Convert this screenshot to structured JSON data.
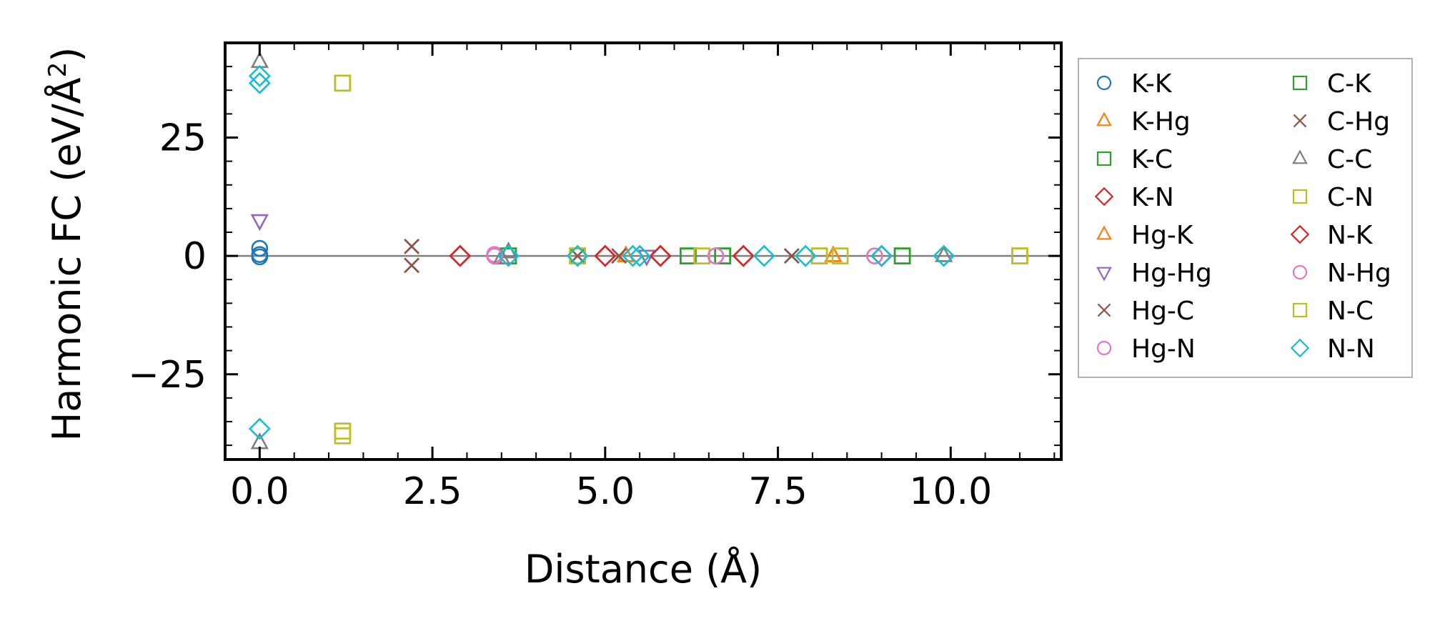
{
  "chart_data": {
    "type": "scatter",
    "xlabel": "Distance (Å)",
    "ylabel_main": "Harmonic FC (eV/Å",
    "ylabel_sup": "2",
    "ylabel_close": ")",
    "xlim": [
      -0.5,
      11.6
    ],
    "ylim": [
      -43,
      45
    ],
    "x_ticks": [
      0.0,
      2.5,
      5.0,
      7.5,
      10.0
    ],
    "x_tick_labels": [
      "0.0",
      "2.5",
      "5.0",
      "7.5",
      "10.0"
    ],
    "y_ticks": [
      -25,
      0,
      25
    ],
    "y_tick_labels": [
      "−25",
      "0",
      "25"
    ],
    "zero_line": true,
    "grid": false,
    "legend": {
      "placement": "outside-right",
      "columns": 2
    },
    "series": [
      {
        "name": "K-K",
        "marker": "circle",
        "color": "#1f77b4",
        "points": [
          [
            0.0,
            1.6
          ],
          [
            0.0,
            0.3
          ],
          [
            0.0,
            -0.2
          ]
        ]
      },
      {
        "name": "K-Hg",
        "marker": "triangle-up",
        "color": "#ff7f0e",
        "points": [
          [
            5.3,
            0.0
          ],
          [
            8.3,
            0.0
          ]
        ]
      },
      {
        "name": "K-C",
        "marker": "square",
        "color": "#2ca02c",
        "points": [
          [
            3.6,
            0.0
          ],
          [
            6.2,
            0.0
          ],
          [
            6.7,
            0.0
          ],
          [
            9.3,
            0.0
          ]
        ]
      },
      {
        "name": "K-N",
        "marker": "diamond",
        "color": "#d62728",
        "points": [
          [
            2.9,
            0.0
          ],
          [
            5.0,
            0.0
          ],
          [
            5.8,
            0.0
          ],
          [
            7.0,
            0.0
          ],
          [
            9.0,
            0.0
          ]
        ]
      },
      {
        "name": "Hg-K",
        "marker": "triangle-up",
        "color": "#ff7f0e",
        "points": [
          [
            5.3,
            0.0
          ],
          [
            8.3,
            0.0
          ]
        ]
      },
      {
        "name": "Hg-Hg",
        "marker": "triangle-down",
        "color": "#9467bd",
        "points": [
          [
            0.0,
            7.5
          ],
          [
            5.6,
            0.0
          ]
        ]
      },
      {
        "name": "Hg-C",
        "marker": "x",
        "color": "#8c564b",
        "points": [
          [
            2.2,
            2.0
          ],
          [
            2.2,
            -2.0
          ],
          [
            4.6,
            0.0
          ],
          [
            5.2,
            0.0
          ],
          [
            7.7,
            0.0
          ]
        ]
      },
      {
        "name": "Hg-N",
        "marker": "circle",
        "color": "#e377c2",
        "points": [
          [
            3.4,
            0.0
          ],
          [
            3.4,
            0.3
          ],
          [
            6.6,
            0.0
          ],
          [
            8.9,
            0.0
          ]
        ]
      },
      {
        "name": "C-K",
        "marker": "square",
        "color": "#2ca02c",
        "points": [
          [
            3.6,
            0.0
          ],
          [
            6.2,
            0.0
          ],
          [
            6.7,
            0.0
          ],
          [
            9.3,
            0.0
          ]
        ]
      },
      {
        "name": "C-Hg",
        "marker": "x",
        "color": "#8c564b",
        "points": [
          [
            2.2,
            2.0
          ],
          [
            2.2,
            -2.0
          ],
          [
            5.2,
            0.0
          ],
          [
            7.7,
            0.0
          ]
        ]
      },
      {
        "name": "C-C",
        "marker": "triangle-up",
        "color": "#7f7f7f",
        "points": [
          [
            0.0,
            41.0
          ],
          [
            0.0,
            -39.5
          ],
          [
            3.5,
            -0.5
          ],
          [
            3.6,
            0.8
          ],
          [
            9.9,
            0.0
          ]
        ]
      },
      {
        "name": "C-N",
        "marker": "square",
        "color": "#bcbd22",
        "points": [
          [
            1.2,
            36.5
          ],
          [
            1.2,
            -37.0
          ],
          [
            1.2,
            -38.0
          ],
          [
            4.6,
            0.0
          ],
          [
            6.4,
            0.0
          ],
          [
            8.1,
            0.0
          ],
          [
            8.4,
            0.0
          ],
          [
            11.0,
            0.0
          ]
        ]
      },
      {
        "name": "N-K",
        "marker": "diamond",
        "color": "#d62728",
        "points": [
          [
            2.9,
            0.0
          ],
          [
            5.0,
            0.0
          ],
          [
            5.8,
            0.0
          ],
          [
            7.0,
            0.0
          ]
        ]
      },
      {
        "name": "N-Hg",
        "marker": "circle",
        "color": "#e377c2",
        "points": [
          [
            3.4,
            0.0
          ],
          [
            6.6,
            0.0
          ],
          [
            8.9,
            0.0
          ]
        ]
      },
      {
        "name": "N-C",
        "marker": "square",
        "color": "#bcbd22",
        "points": [
          [
            1.2,
            36.5
          ],
          [
            1.2,
            -37.0
          ],
          [
            4.6,
            0.0
          ],
          [
            8.1,
            0.0
          ],
          [
            11.0,
            0.0
          ]
        ]
      },
      {
        "name": "N-N",
        "marker": "diamond",
        "color": "#17becf",
        "points": [
          [
            0.0,
            38.0
          ],
          [
            0.0,
            36.5
          ],
          [
            0.0,
            -36.5
          ],
          [
            3.6,
            0.0
          ],
          [
            4.6,
            0.0
          ],
          [
            5.4,
            0.0
          ],
          [
            5.5,
            0.0
          ],
          [
            7.3,
            0.0
          ],
          [
            7.9,
            0.0
          ],
          [
            9.0,
            0.0
          ],
          [
            9.9,
            0.0
          ]
        ]
      }
    ]
  }
}
